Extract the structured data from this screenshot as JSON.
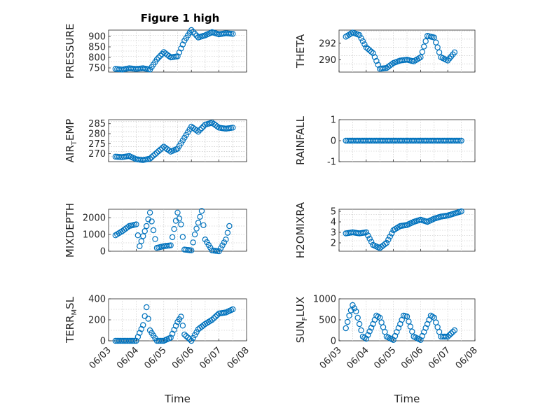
{
  "figure_title": "Figure 1 high",
  "colors": {
    "series": "#0072BD",
    "axes": "#262626",
    "grid": "#bdbdbd"
  },
  "chart_data": [
    {
      "type": "scatter",
      "ylabel": "PRESSURE",
      "title": "Figure 1 high",
      "x_tick_labels": [
        "06/03",
        "06/04",
        "06/05",
        "06/06",
        "06/07",
        "06/08"
      ],
      "ylim": [
        730,
        930
      ],
      "yticks": [
        750,
        800,
        850,
        900
      ],
      "xlabel": "",
      "grid": true,
      "points": [
        [
          "06/03 06:00",
          745
        ],
        [
          "06/03 12:00",
          742
        ],
        [
          "06/03 18:00",
          748
        ],
        [
          "06/04 00:00",
          745
        ],
        [
          "06/04 06:00",
          748
        ],
        [
          "06/04 12:00",
          742
        ],
        [
          "06/04 18:00",
          790
        ],
        [
          "06/05 00:00",
          825
        ],
        [
          "06/05 06:00",
          800
        ],
        [
          "06/05 12:00",
          805
        ],
        [
          "06/05 18:00",
          880
        ],
        [
          "06/06 00:00",
          930
        ],
        [
          "06/06 06:00",
          895
        ],
        [
          "06/06 12:00",
          905
        ],
        [
          "06/06 18:00",
          920
        ],
        [
          "06/07 00:00",
          910
        ],
        [
          "06/07 06:00",
          915
        ],
        [
          "06/07 12:00",
          912
        ]
      ]
    },
    {
      "type": "scatter",
      "ylabel": "THETA",
      "x_tick_labels": [
        "06/03",
        "06/04",
        "06/05",
        "06/06",
        "06/07",
        "06/08"
      ],
      "ylim": [
        288.5,
        293.6
      ],
      "yticks": [
        290,
        292
      ],
      "xlabel": "",
      "grid": true,
      "points": [
        [
          "06/03 06:00",
          292.8
        ],
        [
          "06/03 12:00",
          293.3
        ],
        [
          "06/03 18:00",
          293.0
        ],
        [
          "06/04 00:00",
          291.5
        ],
        [
          "06/04 06:00",
          290.8
        ],
        [
          "06/04 12:00",
          288.9
        ],
        [
          "06/04 18:00",
          289.0
        ],
        [
          "06/05 00:00",
          289.6
        ],
        [
          "06/05 06:00",
          289.9
        ],
        [
          "06/05 12:00",
          290.0
        ],
        [
          "06/05 18:00",
          289.8
        ],
        [
          "06/06 00:00",
          290.3
        ],
        [
          "06/06 06:00",
          292.9
        ],
        [
          "06/06 12:00",
          292.7
        ],
        [
          "06/06 18:00",
          290.3
        ],
        [
          "06/07 00:00",
          289.9
        ],
        [
          "06/07 06:00",
          290.9
        ]
      ]
    },
    {
      "type": "scatter",
      "ylabel": "AIR_TEMP",
      "ylabel_main": "AIR",
      "ylabel_sub": "T",
      "ylabel_rest": "EMP",
      "x_tick_labels": [
        "06/03",
        "06/04",
        "06/05",
        "06/06",
        "06/07",
        "06/08"
      ],
      "ylim": [
        266,
        287
      ],
      "yticks": [
        270,
        275,
        280,
        285
      ],
      "xlabel": "",
      "grid": true,
      "points": [
        [
          "06/03 06:00",
          268.5
        ],
        [
          "06/03 12:00",
          268.3
        ],
        [
          "06/03 18:00",
          268.8
        ],
        [
          "06/04 00:00",
          267.2
        ],
        [
          "06/04 06:00",
          266.8
        ],
        [
          "06/04 12:00",
          267.5
        ],
        [
          "06/04 18:00",
          270.5
        ],
        [
          "06/05 00:00",
          273.5
        ],
        [
          "06/05 06:00",
          271.0
        ],
        [
          "06/05 12:00",
          272.5
        ],
        [
          "06/05 18:00",
          278.0
        ],
        [
          "06/06 00:00",
          283.5
        ],
        [
          "06/06 06:00",
          281.0
        ],
        [
          "06/06 12:00",
          284.5
        ],
        [
          "06/06 18:00",
          285.5
        ],
        [
          "06/07 00:00",
          283.0
        ],
        [
          "06/07 06:00",
          282.5
        ],
        [
          "06/07 12:00",
          283.0
        ]
      ]
    },
    {
      "type": "scatter",
      "ylabel": "RAINFALL",
      "x_tick_labels": [
        "06/03",
        "06/04",
        "06/05",
        "06/06",
        "06/07",
        "06/08"
      ],
      "ylim": [
        -1,
        1
      ],
      "yticks": [
        -1,
        0,
        1
      ],
      "xlabel": "",
      "grid": true,
      "points": [
        [
          "06/03 06:00",
          0
        ],
        [
          "06/03 12:00",
          0
        ],
        [
          "06/03 18:00",
          0
        ],
        [
          "06/04 00:00",
          0
        ],
        [
          "06/04 06:00",
          0
        ],
        [
          "06/04 12:00",
          0
        ],
        [
          "06/04 18:00",
          0
        ],
        [
          "06/05 00:00",
          0
        ],
        [
          "06/05 06:00",
          0
        ],
        [
          "06/05 12:00",
          0
        ],
        [
          "06/05 18:00",
          0
        ],
        [
          "06/06 00:00",
          0
        ],
        [
          "06/06 06:00",
          0
        ],
        [
          "06/06 12:00",
          0
        ],
        [
          "06/06 18:00",
          0
        ],
        [
          "06/07 00:00",
          0
        ],
        [
          "06/07 06:00",
          0
        ],
        [
          "06/07 12:00",
          0
        ]
      ]
    },
    {
      "type": "scatter",
      "ylabel": "MIXDEPTH",
      "x_tick_labels": [
        "06/03",
        "06/04",
        "06/05",
        "06/06",
        "06/07",
        "06/08"
      ],
      "ylim": [
        0,
        2500
      ],
      "yticks": [
        0,
        1000,
        2000
      ],
      "xlabel": "",
      "grid": true,
      "points": [
        [
          "06/03 06:00",
          950
        ],
        [
          "06/03 12:00",
          1200
        ],
        [
          "06/03 18:00",
          1500
        ],
        [
          "06/04 00:00",
          1600
        ],
        [
          "06/04 03:00",
          300
        ],
        [
          "06/04 09:00",
          1500
        ],
        [
          "06/04 12:00",
          2300
        ],
        [
          "06/04 18:00",
          200
        ],
        [
          "06/05 00:00",
          300
        ],
        [
          "06/05 06:00",
          350
        ],
        [
          "06/05 12:00",
          2300
        ],
        [
          "06/05 15:00",
          1600
        ],
        [
          "06/05 18:00",
          100
        ],
        [
          "06/06 00:00",
          50
        ],
        [
          "06/06 03:00",
          1000
        ],
        [
          "06/06 09:00",
          2400
        ],
        [
          "06/06 12:00",
          700
        ],
        [
          "06/06 18:00",
          50
        ],
        [
          "06/07 00:00",
          0
        ],
        [
          "06/07 06:00",
          700
        ],
        [
          "06/07 09:00",
          1500
        ]
      ]
    },
    {
      "type": "scatter",
      "ylabel": "H2OMIXRA",
      "x_tick_labels": [
        "06/03",
        "06/04",
        "06/05",
        "06/06",
        "06/07",
        "06/08"
      ],
      "ylim": [
        1.2,
        5.2
      ],
      "yticks": [
        2,
        3,
        4,
        5
      ],
      "xlabel": "",
      "grid": true,
      "points": [
        [
          "06/03 06:00",
          2.9
        ],
        [
          "06/03 12:00",
          3.0
        ],
        [
          "06/03 18:00",
          2.9
        ],
        [
          "06/04 00:00",
          3.0
        ],
        [
          "06/04 06:00",
          1.8
        ],
        [
          "06/04 12:00",
          1.5
        ],
        [
          "06/04 18:00",
          2.0
        ],
        [
          "06/05 00:00",
          3.2
        ],
        [
          "06/05 06:00",
          3.6
        ],
        [
          "06/05 12:00",
          3.7
        ],
        [
          "06/05 18:00",
          4.0
        ],
        [
          "06/06 00:00",
          4.2
        ],
        [
          "06/06 06:00",
          4.0
        ],
        [
          "06/06 12:00",
          4.3
        ],
        [
          "06/06 18:00",
          4.5
        ],
        [
          "06/07 00:00",
          4.6
        ],
        [
          "06/07 06:00",
          4.8
        ],
        [
          "06/07 12:00",
          5.0
        ]
      ]
    },
    {
      "type": "scatter",
      "ylabel": "TERR_MSL",
      "ylabel_main": "TERR",
      "ylabel_sub": "M",
      "ylabel_rest": "SL",
      "x_tick_labels": [
        "06/03",
        "06/04",
        "06/05",
        "06/06",
        "06/07",
        "06/08"
      ],
      "ylim": [
        0,
        400
      ],
      "yticks": [
        0,
        200,
        400
      ],
      "xlabel": "Time",
      "grid": true,
      "points": [
        [
          "06/03 06:00",
          0
        ],
        [
          "06/03 12:00",
          0
        ],
        [
          "06/03 18:00",
          0
        ],
        [
          "06/04 00:00",
          0
        ],
        [
          "06/04 06:00",
          150
        ],
        [
          "06/04 09:00",
          320
        ],
        [
          "06/04 12:00",
          100
        ],
        [
          "06/04 18:00",
          0
        ],
        [
          "06/05 00:00",
          0
        ],
        [
          "06/05 06:00",
          30
        ],
        [
          "06/05 12:00",
          180
        ],
        [
          "06/05 15:00",
          230
        ],
        [
          "06/05 18:00",
          60
        ],
        [
          "06/06 00:00",
          0
        ],
        [
          "06/06 06:00",
          110
        ],
        [
          "06/06 12:00",
          160
        ],
        [
          "06/06 18:00",
          200
        ],
        [
          "06/07 00:00",
          260
        ],
        [
          "06/07 06:00",
          270
        ],
        [
          "06/07 12:00",
          300
        ]
      ]
    },
    {
      "type": "scatter",
      "ylabel": "SUN_FLUX",
      "ylabel_main": "SUN",
      "ylabel_sub": "F",
      "ylabel_rest": "LUX",
      "x_tick_labels": [
        "06/03",
        "06/04",
        "06/05",
        "06/06",
        "06/07",
        "06/08"
      ],
      "ylim": [
        0,
        1000
      ],
      "yticks": [
        0,
        500,
        1000
      ],
      "xlabel": "Time",
      "grid": true,
      "points": [
        [
          "06/03 06:00",
          300
        ],
        [
          "06/03 09:00",
          600
        ],
        [
          "06/03 12:00",
          850
        ],
        [
          "06/03 15:00",
          700
        ],
        [
          "06/03 18:00",
          400
        ],
        [
          "06/03 21:00",
          100
        ],
        [
          "06/04 00:00",
          50
        ],
        [
          "06/04 06:00",
          400
        ],
        [
          "06/04 09:00",
          600
        ],
        [
          "06/04 12:00",
          550
        ],
        [
          "06/04 18:00",
          100
        ],
        [
          "06/05 00:00",
          20
        ],
        [
          "06/05 06:00",
          400
        ],
        [
          "06/05 09:00",
          600
        ],
        [
          "06/05 12:00",
          580
        ],
        [
          "06/05 18:00",
          100
        ],
        [
          "06/06 00:00",
          20
        ],
        [
          "06/06 06:00",
          400
        ],
        [
          "06/06 09:00",
          600
        ],
        [
          "06/06 12:00",
          550
        ],
        [
          "06/06 18:00",
          100
        ],
        [
          "06/07 00:00",
          100
        ],
        [
          "06/07 06:00",
          250
        ]
      ]
    }
  ]
}
